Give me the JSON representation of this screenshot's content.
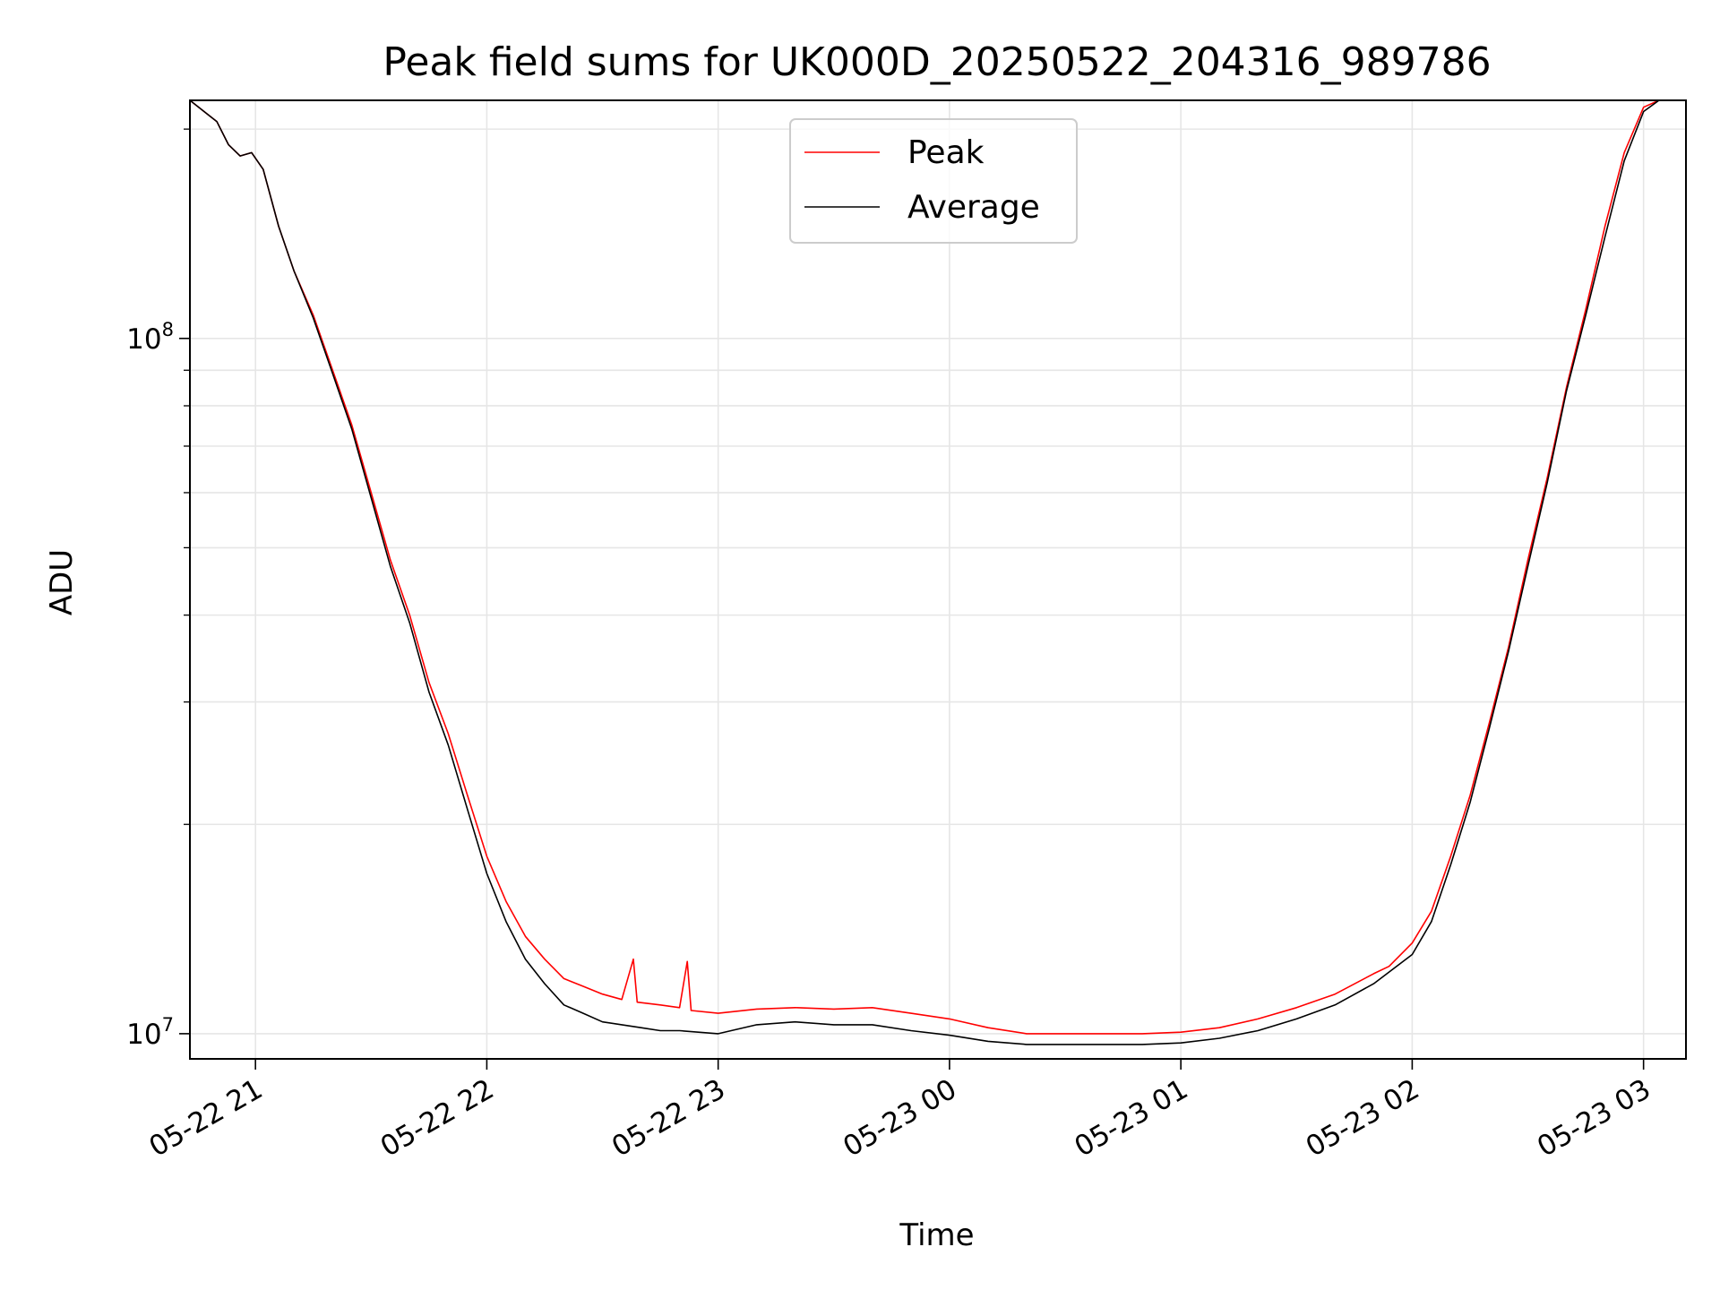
{
  "chart_data": {
    "type": "line",
    "title": "Peak field sums for UK000D_20250522_204316_989786",
    "xlabel": "Time",
    "ylabel": "ADU",
    "x_scale": "time",
    "y_scale": "log",
    "xlim": [
      "2025-05-22 20:43",
      "2025-05-23 03:11"
    ],
    "ylim": [
      9200000,
      220000000
    ],
    "x_ticks": [
      {
        "value": "2025-05-22 21:00",
        "label": "05-22 21"
      },
      {
        "value": "2025-05-22 22:00",
        "label": "05-22 22"
      },
      {
        "value": "2025-05-22 23:00",
        "label": "05-22 23"
      },
      {
        "value": "2025-05-23 00:00",
        "label": "05-23 00"
      },
      {
        "value": "2025-05-23 01:00",
        "label": "05-23 01"
      },
      {
        "value": "2025-05-23 02:00",
        "label": "05-23 02"
      },
      {
        "value": "2025-05-23 03:00",
        "label": "05-23 03"
      }
    ],
    "y_ticks": [
      {
        "value": 10000000,
        "base": "10",
        "exp": "7"
      },
      {
        "value": 100000000,
        "base": "10",
        "exp": "8"
      }
    ],
    "grid": true,
    "legend_position": "top-center",
    "series": [
      {
        "name": "Peak",
        "color": "#ff0000",
        "points": [
          [
            "2025-05-22 20:43",
            220000000
          ],
          [
            "2025-05-22 20:50",
            205000000
          ],
          [
            "2025-05-22 20:53",
            190000000
          ],
          [
            "2025-05-22 20:56",
            183000000
          ],
          [
            "2025-05-22 20:59",
            185000000
          ],
          [
            "2025-05-22 21:02",
            175000000
          ],
          [
            "2025-05-22 21:06",
            145000000
          ],
          [
            "2025-05-22 21:10",
            125000000
          ],
          [
            "2025-05-22 21:15",
            108000000
          ],
          [
            "2025-05-22 21:20",
            90000000
          ],
          [
            "2025-05-22 21:25",
            75000000
          ],
          [
            "2025-05-22 21:30",
            60000000
          ],
          [
            "2025-05-22 21:35",
            48000000
          ],
          [
            "2025-05-22 21:40",
            40000000
          ],
          [
            "2025-05-22 21:45",
            32000000
          ],
          [
            "2025-05-22 21:50",
            27000000
          ],
          [
            "2025-05-22 21:55",
            22000000
          ],
          [
            "2025-05-22 22:00",
            18000000
          ],
          [
            "2025-05-22 22:05",
            15500000
          ],
          [
            "2025-05-22 22:10",
            13800000
          ],
          [
            "2025-05-22 22:15",
            12800000
          ],
          [
            "2025-05-22 22:20",
            12000000
          ],
          [
            "2025-05-22 22:25",
            11700000
          ],
          [
            "2025-05-22 22:30",
            11400000
          ],
          [
            "2025-05-22 22:35",
            11200000
          ],
          [
            "2025-05-22 22:38",
            12800000
          ],
          [
            "2025-05-22 22:39",
            11100000
          ],
          [
            "2025-05-22 22:45",
            11000000
          ],
          [
            "2025-05-22 22:50",
            10900000
          ],
          [
            "2025-05-22 22:52",
            12700000
          ],
          [
            "2025-05-22 22:53",
            10800000
          ],
          [
            "2025-05-22 23:00",
            10700000
          ],
          [
            "2025-05-22 23:10",
            10850000
          ],
          [
            "2025-05-22 23:20",
            10900000
          ],
          [
            "2025-05-22 23:30",
            10850000
          ],
          [
            "2025-05-22 23:40",
            10900000
          ],
          [
            "2025-05-22 23:50",
            10700000
          ],
          [
            "2025-05-23 00:00",
            10500000
          ],
          [
            "2025-05-23 00:10",
            10200000
          ],
          [
            "2025-05-23 00:20",
            10000000
          ],
          [
            "2025-05-23 00:30",
            10000000
          ],
          [
            "2025-05-23 00:40",
            10000000
          ],
          [
            "2025-05-23 00:50",
            10000000
          ],
          [
            "2025-05-23 01:00",
            10050000
          ],
          [
            "2025-05-23 01:10",
            10200000
          ],
          [
            "2025-05-23 01:20",
            10500000
          ],
          [
            "2025-05-23 01:30",
            10900000
          ],
          [
            "2025-05-23 01:40",
            11400000
          ],
          [
            "2025-05-23 01:50",
            12200000
          ],
          [
            "2025-05-23 01:54",
            12500000
          ],
          [
            "2025-05-23 02:00",
            13500000
          ],
          [
            "2025-05-23 02:05",
            15000000
          ],
          [
            "2025-05-23 02:10",
            18000000
          ],
          [
            "2025-05-23 02:15",
            22000000
          ],
          [
            "2025-05-23 02:20",
            28000000
          ],
          [
            "2025-05-23 02:25",
            36000000
          ],
          [
            "2025-05-23 02:30",
            48000000
          ],
          [
            "2025-05-23 02:35",
            63000000
          ],
          [
            "2025-05-23 02:40",
            85000000
          ],
          [
            "2025-05-23 02:45",
            110000000
          ],
          [
            "2025-05-23 02:50",
            145000000
          ],
          [
            "2025-05-23 02:55",
            185000000
          ],
          [
            "2025-05-23 03:00",
            215000000
          ],
          [
            "2025-05-23 03:04",
            220000000
          ]
        ]
      },
      {
        "name": "Average",
        "color": "#000000",
        "points": [
          [
            "2025-05-22 20:43",
            220000000
          ],
          [
            "2025-05-22 20:50",
            205000000
          ],
          [
            "2025-05-22 20:53",
            190000000
          ],
          [
            "2025-05-22 20:56",
            183000000
          ],
          [
            "2025-05-22 20:59",
            185000000
          ],
          [
            "2025-05-22 21:02",
            175000000
          ],
          [
            "2025-05-22 21:06",
            145000000
          ],
          [
            "2025-05-22 21:10",
            125000000
          ],
          [
            "2025-05-22 21:15",
            107000000
          ],
          [
            "2025-05-22 21:20",
            89000000
          ],
          [
            "2025-05-22 21:25",
            74000000
          ],
          [
            "2025-05-22 21:30",
            59000000
          ],
          [
            "2025-05-22 21:35",
            47000000
          ],
          [
            "2025-05-22 21:40",
            39000000
          ],
          [
            "2025-05-22 21:45",
            31000000
          ],
          [
            "2025-05-22 21:50",
            26000000
          ],
          [
            "2025-05-22 21:55",
            21000000
          ],
          [
            "2025-05-22 22:00",
            17000000
          ],
          [
            "2025-05-22 22:05",
            14500000
          ],
          [
            "2025-05-22 22:10",
            12800000
          ],
          [
            "2025-05-22 22:15",
            11800000
          ],
          [
            "2025-05-22 22:20",
            11000000
          ],
          [
            "2025-05-22 22:25",
            10700000
          ],
          [
            "2025-05-22 22:30",
            10400000
          ],
          [
            "2025-05-22 22:35",
            10300000
          ],
          [
            "2025-05-22 22:40",
            10200000
          ],
          [
            "2025-05-22 22:45",
            10100000
          ],
          [
            "2025-05-22 22:50",
            10100000
          ],
          [
            "2025-05-22 23:00",
            10000000
          ],
          [
            "2025-05-22 23:10",
            10300000
          ],
          [
            "2025-05-22 23:20",
            10400000
          ],
          [
            "2025-05-22 23:30",
            10300000
          ],
          [
            "2025-05-22 23:40",
            10300000
          ],
          [
            "2025-05-22 23:50",
            10100000
          ],
          [
            "2025-05-23 00:00",
            9950000
          ],
          [
            "2025-05-23 00:10",
            9750000
          ],
          [
            "2025-05-23 00:20",
            9650000
          ],
          [
            "2025-05-23 00:30",
            9650000
          ],
          [
            "2025-05-23 00:40",
            9650000
          ],
          [
            "2025-05-23 00:50",
            9650000
          ],
          [
            "2025-05-23 01:00",
            9700000
          ],
          [
            "2025-05-23 01:10",
            9850000
          ],
          [
            "2025-05-23 01:20",
            10100000
          ],
          [
            "2025-05-23 01:30",
            10500000
          ],
          [
            "2025-05-23 01:40",
            11000000
          ],
          [
            "2025-05-23 01:50",
            11800000
          ],
          [
            "2025-05-23 02:00",
            13000000
          ],
          [
            "2025-05-23 02:05",
            14500000
          ],
          [
            "2025-05-23 02:10",
            17500000
          ],
          [
            "2025-05-23 02:15",
            21500000
          ],
          [
            "2025-05-23 02:20",
            27500000
          ],
          [
            "2025-05-23 02:25",
            35500000
          ],
          [
            "2025-05-23 02:30",
            47000000
          ],
          [
            "2025-05-23 02:35",
            62000000
          ],
          [
            "2025-05-23 02:40",
            84000000
          ],
          [
            "2025-05-23 02:45",
            108000000
          ],
          [
            "2025-05-23 02:50",
            140000000
          ],
          [
            "2025-05-23 02:55",
            180000000
          ],
          [
            "2025-05-23 03:00",
            212000000
          ],
          [
            "2025-05-23 03:04",
            220000000
          ]
        ]
      }
    ]
  }
}
